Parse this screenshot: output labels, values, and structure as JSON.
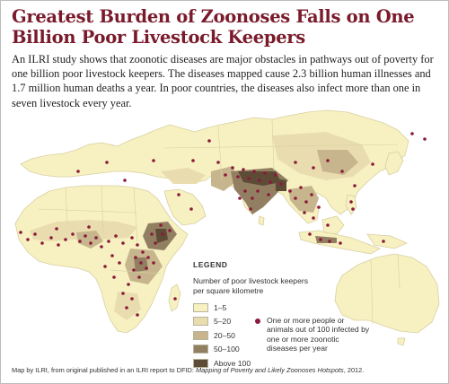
{
  "title": "Greatest Burden of Zoonoses Falls on One Billion Poor Livestock Keepers",
  "intro": "An ILRI study shows that zoonotic diseases are major obstacles in pathways out of poverty for one billion poor livestock keepers. The diseases mapped cause 2.3 billion human illnesses and 1.7 million human deaths a year. In poor countries, the diseases also infect more than one in seven livestock every year.",
  "legend": {
    "title": "LEGEND",
    "subtitle": "Number of poor livestock keepers per square kilometre",
    "classes": [
      {
        "label": "1–5",
        "color": "#f7f1c2"
      },
      {
        "label": "5–20",
        "color": "#e9ddb0"
      },
      {
        "label": "20–50",
        "color": "#c7b68d"
      },
      {
        "label": "50–100",
        "color": "#927f62"
      },
      {
        "label": "Above 100",
        "color": "#5d4b36"
      }
    ],
    "dot_label": "One or more people or animals out of 100 infected by one or more zoonotic diseases per year",
    "dot_color": "#8b1a3a"
  },
  "colors": {
    "title": "#7a1b2c",
    "land": "#f7f1c2",
    "border": "#d8cfa0"
  },
  "source": {
    "prefix": "Map by ILRI, from original published in an ILRI report to DFID: ",
    "report": "Mapping of Poverty and Likely Zoonoses Hotspots",
    "suffix": ", 2012."
  }
}
